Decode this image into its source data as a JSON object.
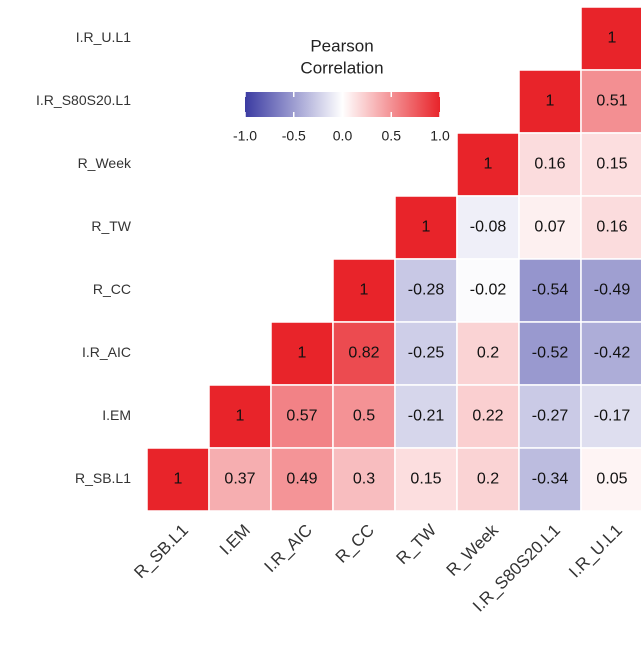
{
  "chart_data": {
    "type": "heatmap",
    "x_categories": [
      "R_SB.L1",
      "I.EM",
      "I.R_AIC",
      "R_CC",
      "R_TW",
      "R_Week",
      "I.R_S80S20.L1",
      "I.R_U.L1"
    ],
    "y_categories": [
      "I.R_U.L1",
      "I.R_S80S20.L1",
      "R_Week",
      "R_TW",
      "R_CC",
      "I.R_AIC",
      "I.EM",
      "R_SB.L1"
    ],
    "values": [
      [
        null,
        null,
        null,
        null,
        null,
        null,
        null,
        1
      ],
      [
        null,
        null,
        null,
        null,
        null,
        null,
        1,
        0.51
      ],
      [
        null,
        null,
        null,
        null,
        null,
        1,
        0.16,
        0.15
      ],
      [
        null,
        null,
        null,
        null,
        1,
        -0.08,
        0.07,
        0.16
      ],
      [
        null,
        null,
        null,
        1,
        -0.28,
        -0.02,
        -0.54,
        -0.49
      ],
      [
        null,
        null,
        1,
        0.82,
        -0.25,
        0.2,
        -0.52,
        -0.42
      ],
      [
        null,
        1,
        0.57,
        0.5,
        -0.21,
        0.22,
        -0.27,
        -0.17
      ],
      [
        1,
        0.37,
        0.49,
        0.3,
        0.15,
        0.2,
        -0.34,
        0.05
      ]
    ],
    "legend_title": [
      "Pearson",
      "Correlation"
    ],
    "clim": [
      -1,
      1
    ],
    "colors": {
      "low": "#3b3ba2",
      "mid": "#ffffff",
      "high": "#e8242a"
    },
    "cticks": [
      {
        "value": -1,
        "label": "-1.0"
      },
      -0.5,
      {
        "value": 0,
        "label": "0.0"
      },
      0.5,
      {
        "value": 1,
        "label": "1.0"
      }
    ]
  }
}
